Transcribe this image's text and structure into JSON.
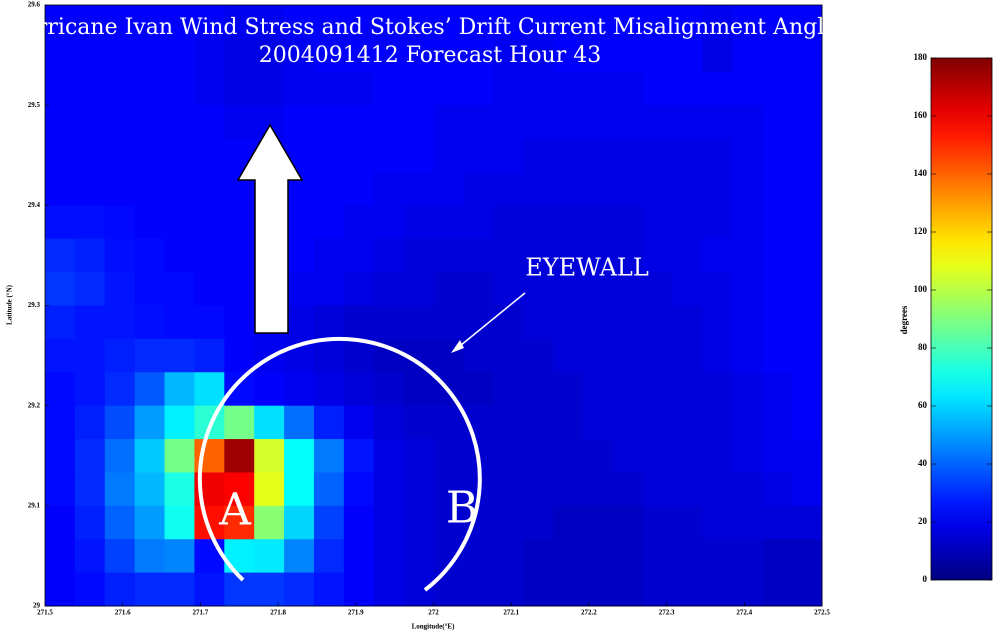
{
  "chart_data": {
    "type": "heatmap",
    "title": "urricane Ivan Wind Stress and Stokes’ Drift Current Misalignment Angle",
    "subtitle": "2004091412 Forecast Hour 43",
    "x_label": "Longitude(°E)",
    "y_label": "Latitude (°N)",
    "xlim": [
      271.5,
      272.5
    ],
    "ylim": [
      29,
      29.6
    ],
    "xticks": [
      271.5,
      271.6,
      271.7,
      271.8,
      271.9,
      272,
      272.1,
      272.2,
      272.3,
      272.4,
      272.5
    ],
    "yticks": [
      29,
      29.1,
      29.2,
      29.3,
      29.4,
      29.5,
      29.6
    ],
    "z": [
      [
        22,
        22,
        22,
        22,
        22,
        22,
        20,
        20,
        22,
        22,
        22,
        22,
        22,
        22,
        22,
        22,
        22,
        22,
        22,
        22,
        22,
        22,
        20,
        22,
        22,
        22
      ],
      [
        22,
        22,
        22,
        22,
        22,
        20,
        18,
        18,
        20,
        22,
        22,
        22,
        22,
        22,
        22,
        20,
        20,
        22,
        22,
        22,
        22,
        22,
        18,
        22,
        22,
        22
      ],
      [
        22,
        22,
        22,
        22,
        22,
        20,
        18,
        18,
        20,
        20,
        20,
        22,
        22,
        22,
        22,
        20,
        20,
        20,
        20,
        20,
        22,
        22,
        22,
        22,
        22,
        22
      ],
      [
        22,
        22,
        22,
        22,
        22,
        22,
        20,
        20,
        22,
        22,
        22,
        22,
        22,
        20,
        20,
        20,
        20,
        20,
        20,
        20,
        20,
        20,
        20,
        20,
        22,
        22
      ],
      [
        22,
        22,
        22,
        22,
        22,
        22,
        22,
        22,
        22,
        22,
        22,
        22,
        22,
        20,
        20,
        20,
        18,
        18,
        18,
        18,
        18,
        18,
        18,
        20,
        22,
        22
      ],
      [
        22,
        22,
        22,
        22,
        22,
        22,
        22,
        22,
        22,
        22,
        22,
        20,
        20,
        20,
        18,
        18,
        18,
        18,
        18,
        18,
        18,
        18,
        18,
        20,
        22,
        22
      ],
      [
        25,
        25,
        24,
        22,
        22,
        22,
        22,
        22,
        22,
        22,
        20,
        20,
        18,
        18,
        18,
        16,
        16,
        16,
        16,
        16,
        18,
        18,
        18,
        20,
        22,
        22
      ],
      [
        30,
        28,
        25,
        24,
        22,
        22,
        22,
        22,
        22,
        20,
        20,
        18,
        16,
        16,
        16,
        16,
        16,
        16,
        16,
        16,
        18,
        18,
        20,
        20,
        22,
        22
      ],
      [
        32,
        30,
        26,
        24,
        24,
        22,
        22,
        22,
        20,
        20,
        18,
        16,
        16,
        14,
        14,
        16,
        16,
        16,
        16,
        16,
        16,
        18,
        18,
        20,
        22,
        22
      ],
      [
        28,
        26,
        26,
        25,
        24,
        24,
        22,
        20,
        18,
        16,
        14,
        14,
        14,
        14,
        14,
        14,
        16,
        16,
        16,
        16,
        16,
        16,
        18,
        20,
        22,
        22
      ],
      [
        26,
        26,
        28,
        30,
        30,
        28,
        22,
        20,
        18,
        16,
        14,
        12,
        12,
        12,
        14,
        14,
        14,
        16,
        16,
        16,
        16,
        16,
        18,
        20,
        22,
        22
      ],
      [
        24,
        26,
        30,
        38,
        55,
        62,
        24,
        22,
        20,
        18,
        16,
        14,
        12,
        12,
        12,
        14,
        14,
        14,
        16,
        16,
        16,
        16,
        16,
        18,
        20,
        22
      ],
      [
        24,
        28,
        36,
        50,
        65,
        75,
        88,
        62,
        42,
        28,
        20,
        16,
        14,
        14,
        14,
        14,
        14,
        14,
        16,
        16,
        16,
        16,
        16,
        18,
        20,
        22
      ],
      [
        24,
        30,
        42,
        58,
        88,
        140,
        175,
        105,
        68,
        44,
        26,
        18,
        16,
        14,
        14,
        14,
        14,
        14,
        14,
        16,
        16,
        16,
        16,
        18,
        20,
        20
      ],
      [
        24,
        30,
        44,
        55,
        72,
        160,
        158,
        108,
        68,
        40,
        24,
        18,
        16,
        14,
        14,
        14,
        14,
        14,
        14,
        14,
        16,
        16,
        16,
        16,
        18,
        20
      ],
      [
        22,
        28,
        40,
        50,
        70,
        155,
        150,
        92,
        60,
        34,
        22,
        18,
        16,
        14,
        14,
        14,
        14,
        12,
        12,
        12,
        14,
        14,
        16,
        16,
        16,
        16
      ],
      [
        22,
        26,
        34,
        44,
        46,
        24,
        65,
        64,
        46,
        30,
        22,
        18,
        16,
        14,
        14,
        14,
        12,
        12,
        12,
        12,
        14,
        14,
        14,
        14,
        12,
        12
      ],
      [
        22,
        24,
        28,
        30,
        30,
        26,
        32,
        32,
        30,
        26,
        22,
        18,
        16,
        14,
        14,
        14,
        12,
        12,
        12,
        12,
        14,
        14,
        14,
        14,
        12,
        12
      ]
    ],
    "colorbar": {
      "label": "degrees",
      "lim": [
        0,
        180
      ],
      "ticks": [
        0,
        20,
        40,
        60,
        80,
        100,
        120,
        140,
        160,
        180
      ]
    },
    "annotations": [
      "EYEWALL",
      "A",
      "B"
    ]
  }
}
